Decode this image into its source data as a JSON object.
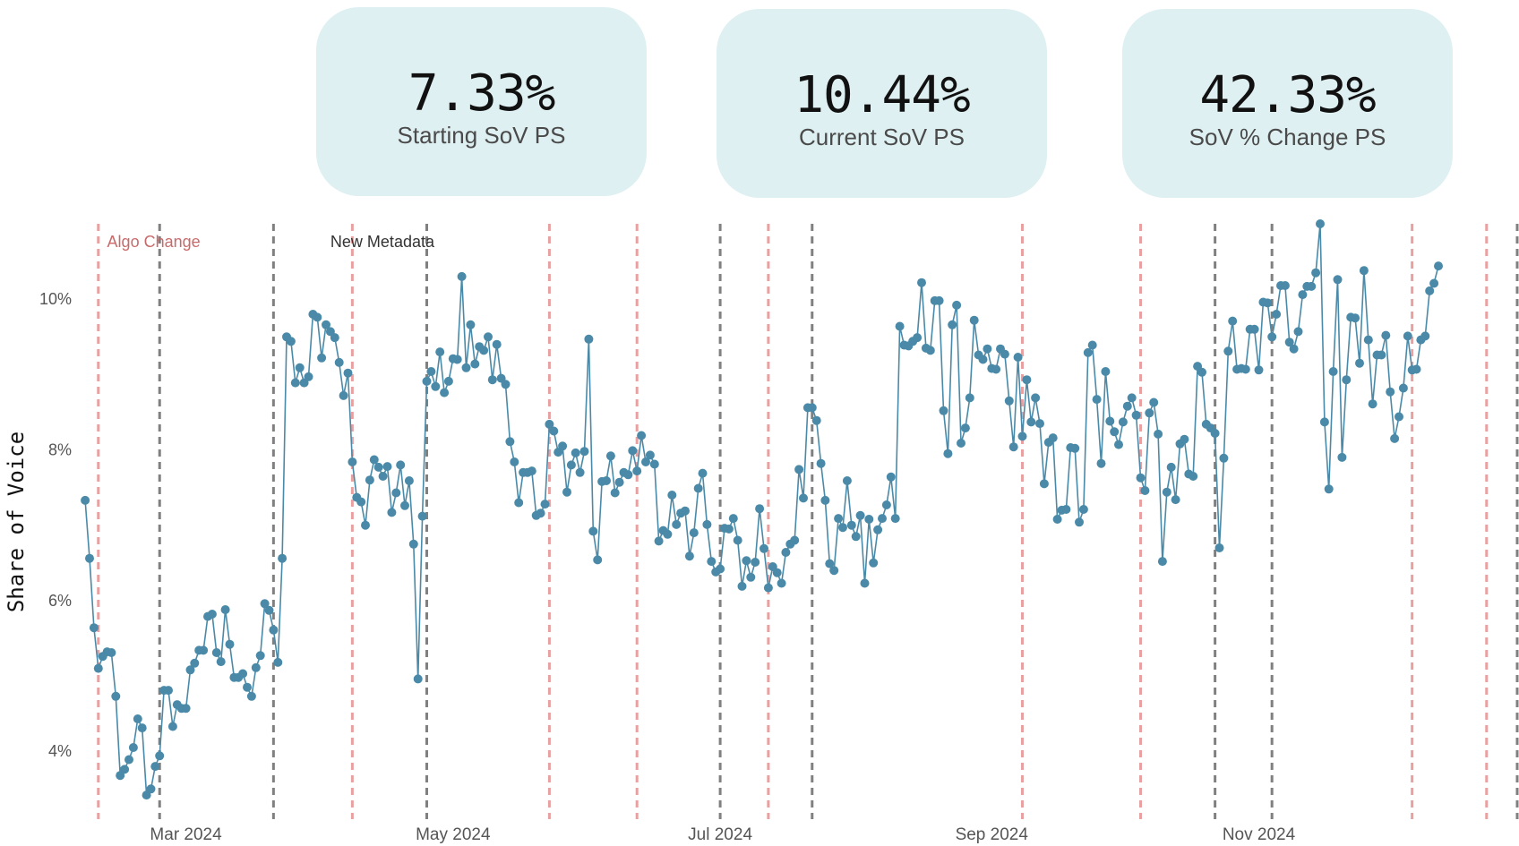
{
  "kpis": [
    {
      "value": "7.33%",
      "label": "Starting SoV PS"
    },
    {
      "value": "10.44%",
      "label": "Current SoV PS"
    },
    {
      "value": "42.33%",
      "label": "SoV % Change PS"
    }
  ],
  "chart_data": {
    "type": "line",
    "title": "",
    "xlabel": "",
    "ylabel": "Share of Voice",
    "x_range": [
      "2024-02-08",
      "2024-12-30"
    ],
    "ylim": [
      3.1,
      11.0
    ],
    "y_ticks": [
      4,
      6,
      8,
      10
    ],
    "y_tick_labels": [
      "4%",
      "6%",
      "8%",
      "10%"
    ],
    "x_ticks": [
      "2024-03-01",
      "2024-05-01",
      "2024-07-01",
      "2024-09-01",
      "2024-11-01"
    ],
    "x_tick_labels": [
      "Mar 2024",
      "May 2024",
      "Jul 2024",
      "Sep 2024",
      "Nov 2024"
    ],
    "grid": false,
    "colors": {
      "line": "#4a8aa8",
      "marker": "#4a8aa8",
      "red_line": "#e8a0a0",
      "gray_line": "#808080",
      "red_text": "#c96a6a",
      "dark_text": "#333333"
    },
    "annotations": [
      {
        "text": "Algo Change",
        "date": "2024-02-12",
        "color": "red"
      },
      {
        "text": "New Metadata",
        "date": "2024-04-03",
        "color": "dark"
      }
    ],
    "red_event_dates": [
      "2024-02-10",
      "2024-04-08",
      "2024-05-23",
      "2024-06-12",
      "2024-07-12",
      "2024-09-08",
      "2024-10-05",
      "2024-12-06",
      "2024-12-23"
    ],
    "gray_event_dates": [
      "2024-02-24",
      "2024-03-21",
      "2024-04-25",
      "2024-07-01",
      "2024-07-22",
      "2024-10-22",
      "2024-11-04",
      "2024-12-30"
    ],
    "series": [
      {
        "start_date": "2024-02-07",
        "values": [
          7.33,
          6.56,
          5.64,
          5.1,
          5.26,
          5.32,
          5.31,
          4.73,
          3.68,
          3.76,
          3.89,
          4.05,
          4.43,
          4.31,
          3.42,
          3.5,
          3.8,
          3.94,
          4.81,
          4.81,
          4.33,
          4.62,
          4.57,
          4.57,
          5.08,
          5.17,
          5.34,
          5.34,
          5.79,
          5.82,
          5.31,
          5.19,
          5.88,
          5.42,
          4.98,
          4.98,
          5.03,
          4.85,
          4.73,
          5.11,
          5.27,
          5.96,
          5.87,
          5.61,
          5.18,
          6.56,
          9.5,
          9.44,
          8.89,
          9.09,
          8.89,
          8.97,
          9.8,
          9.76,
          9.22,
          9.66,
          9.57,
          9.49,
          9.16,
          8.72,
          9.02,
          7.84,
          7.37,
          7.31,
          7.0,
          7.6,
          7.87,
          7.77,
          7.65,
          7.78,
          7.17,
          7.43,
          7.8,
          7.26,
          7.59,
          6.75,
          4.96,
          7.12,
          8.91,
          9.04,
          8.84,
          9.3,
          8.76,
          8.91,
          9.21,
          9.2,
          10.3,
          9.09,
          9.66,
          9.14,
          9.37,
          9.32,
          9.5,
          8.93,
          9.4,
          8.95,
          8.87,
          8.11,
          7.84,
          7.3,
          7.7,
          7.7,
          7.72,
          7.13,
          7.16,
          7.28,
          8.34,
          8.25,
          7.97,
          8.05,
          7.44,
          7.8,
          7.96,
          7.7,
          7.98,
          9.47,
          6.92,
          6.54,
          7.58,
          7.59,
          7.92,
          7.43,
          7.57,
          7.7,
          7.67,
          7.99,
          7.72,
          8.19,
          7.84,
          7.93,
          7.81,
          6.79,
          6.93,
          6.88,
          7.4,
          7.01,
          7.16,
          7.19,
          6.59,
          6.9,
          7.49,
          7.69,
          7.01,
          6.52,
          6.38,
          6.42,
          6.96,
          6.95,
          7.09,
          6.8,
          6.19,
          6.53,
          6.31,
          6.51,
          7.22,
          6.69,
          6.17,
          6.45,
          6.37,
          6.23,
          6.64,
          6.75,
          6.8,
          7.74,
          7.36,
          8.56,
          8.56,
          8.39,
          7.82,
          7.33,
          6.49,
          6.4,
          7.09,
          6.97,
          7.59,
          7.0,
          6.85,
          7.13,
          6.23,
          7.08,
          6.5,
          6.94,
          7.09,
          7.27,
          7.64,
          7.09,
          9.64,
          9.39,
          9.38,
          9.44,
          9.49,
          10.22,
          9.35,
          9.32,
          9.98,
          9.98,
          8.52,
          7.95,
          9.66,
          9.92,
          8.09,
          8.29,
          8.69,
          9.72,
          9.26,
          9.2,
          9.34,
          9.08,
          9.07,
          9.34,
          9.27,
          8.65,
          8.04,
          9.23,
          8.18,
          8.93,
          8.37,
          8.69,
          8.35,
          7.55,
          8.1,
          8.16,
          7.08,
          7.2,
          7.21,
          8.03,
          8.02,
          7.04,
          7.21,
          9.29,
          9.39,
          8.67,
          7.82,
          9.04,
          8.38,
          8.24,
          8.07,
          8.37,
          8.58,
          8.69,
          8.46,
          7.63,
          7.46,
          8.49,
          8.63,
          8.21,
          6.52,
          7.44,
          7.77,
          7.34,
          8.08,
          8.14,
          7.68,
          7.65,
          9.11,
          9.03,
          8.34,
          8.29,
          8.22,
          6.7,
          7.89,
          9.31,
          9.71,
          9.07,
          9.08,
          9.07,
          9.6,
          9.6,
          9.06,
          9.96,
          9.95,
          9.5,
          9.8,
          10.18,
          10.18,
          9.43,
          9.34,
          9.57,
          10.06,
          10.17,
          10.17,
          10.35,
          11.0,
          8.37,
          7.48,
          9.04,
          10.26,
          7.9,
          8.93,
          9.76,
          9.75,
          9.15,
          10.38,
          9.46,
          8.61,
          9.26,
          9.26,
          9.52,
          8.77,
          8.15,
          8.44,
          8.82,
          9.51,
          9.06,
          9.07,
          9.46,
          9.51,
          10.11,
          10.21,
          10.44
        ]
      }
    ]
  }
}
